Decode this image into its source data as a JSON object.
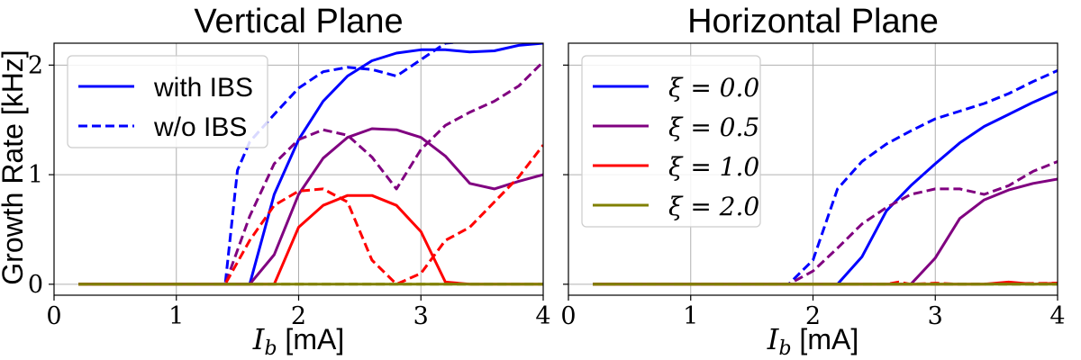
{
  "colors": {
    "xi0": "#0000ff",
    "xi05": "#800080",
    "xi1": "#ff0000",
    "xi2": "#808000"
  },
  "ylabel": "Growth Rate [kHz]",
  "chart_data": [
    {
      "type": "line",
      "title": "Vertical Plane",
      "xlabel_sym": "I",
      "xlabel_sub": "b",
      "xlabel_unit": " [mA]",
      "xlim": [
        0,
        4
      ],
      "ylim": [
        -0.1,
        2.2
      ],
      "xticks": [
        0,
        1,
        2,
        3,
        4
      ],
      "yticks": [
        0,
        1,
        2
      ],
      "grid": true,
      "legend": {
        "placement": "upper-left",
        "entries": [
          {
            "label": "with IBS",
            "style": "solid",
            "color": "#0000ff"
          },
          {
            "label": "w/o IBS",
            "style": "dashed",
            "color": "#0000ff"
          }
        ]
      },
      "series": [
        {
          "color": "#0000ff",
          "style": "solid",
          "points": [
            [
              0.2,
              0
            ],
            [
              1.4,
              0
            ],
            [
              1.6,
              0
            ],
            [
              1.8,
              0.82
            ],
            [
              2.0,
              1.32
            ],
            [
              2.2,
              1.67
            ],
            [
              2.4,
              1.9
            ],
            [
              2.6,
              2.04
            ],
            [
              2.8,
              2.11
            ],
            [
              3.0,
              2.14
            ],
            [
              3.2,
              2.14
            ],
            [
              3.4,
              2.12
            ],
            [
              3.6,
              2.13
            ],
            [
              3.8,
              2.18
            ],
            [
              4.0,
              2.2
            ]
          ]
        },
        {
          "color": "#0000ff",
          "style": "dashed",
          "points": [
            [
              0.2,
              0
            ],
            [
              1.4,
              0
            ],
            [
              1.5,
              1.04
            ],
            [
              1.6,
              1.3
            ],
            [
              1.8,
              1.55
            ],
            [
              2.0,
              1.79
            ],
            [
              2.2,
              1.94
            ],
            [
              2.4,
              1.98
            ],
            [
              2.6,
              1.96
            ],
            [
              2.8,
              1.9
            ],
            [
              3.0,
              2.05
            ],
            [
              3.2,
              2.2
            ],
            [
              3.4,
              2.22
            ],
            [
              3.6,
              2.23
            ],
            [
              4.0,
              2.25
            ]
          ]
        },
        {
          "color": "#800080",
          "style": "solid",
          "points": [
            [
              0.2,
              0
            ],
            [
              1.6,
              0
            ],
            [
              1.8,
              0.27
            ],
            [
              2.0,
              0.82
            ],
            [
              2.2,
              1.15
            ],
            [
              2.4,
              1.34
            ],
            [
              2.6,
              1.42
            ],
            [
              2.8,
              1.41
            ],
            [
              3.0,
              1.34
            ],
            [
              3.2,
              1.17
            ],
            [
              3.4,
              0.92
            ],
            [
              3.6,
              0.87
            ],
            [
              3.8,
              0.94
            ],
            [
              4.0,
              1.0
            ]
          ]
        },
        {
          "color": "#800080",
          "style": "dashed",
          "points": [
            [
              0.2,
              0
            ],
            [
              1.4,
              0
            ],
            [
              1.6,
              0.62
            ],
            [
              1.8,
              1.1
            ],
            [
              2.0,
              1.32
            ],
            [
              2.2,
              1.41
            ],
            [
              2.4,
              1.36
            ],
            [
              2.6,
              1.16
            ],
            [
              2.8,
              0.87
            ],
            [
              3.0,
              1.23
            ],
            [
              3.2,
              1.45
            ],
            [
              3.4,
              1.57
            ],
            [
              3.6,
              1.67
            ],
            [
              3.8,
              1.81
            ],
            [
              4.0,
              2.03
            ]
          ]
        },
        {
          "color": "#ff0000",
          "style": "solid",
          "points": [
            [
              0.2,
              0
            ],
            [
              1.8,
              0
            ],
            [
              2.0,
              0.52
            ],
            [
              2.2,
              0.72
            ],
            [
              2.4,
              0.81
            ],
            [
              2.6,
              0.81
            ],
            [
              2.8,
              0.72
            ],
            [
              3.0,
              0.48
            ],
            [
              3.2,
              0.02
            ],
            [
              3.4,
              0
            ],
            [
              4.0,
              0
            ]
          ]
        },
        {
          "color": "#ff0000",
          "style": "dashed",
          "points": [
            [
              0.2,
              0
            ],
            [
              1.4,
              0
            ],
            [
              1.6,
              0.4
            ],
            [
              1.8,
              0.72
            ],
            [
              2.0,
              0.85
            ],
            [
              2.2,
              0.87
            ],
            [
              2.4,
              0.75
            ],
            [
              2.6,
              0.22
            ],
            [
              2.8,
              0
            ],
            [
              3.0,
              0.1
            ],
            [
              3.2,
              0.4
            ],
            [
              3.4,
              0.52
            ],
            [
              3.6,
              0.75
            ],
            [
              3.8,
              0.98
            ],
            [
              4.0,
              1.27
            ]
          ]
        },
        {
          "color": "#808000",
          "style": "solid",
          "points": [
            [
              0.2,
              0
            ],
            [
              4.0,
              0
            ]
          ]
        },
        {
          "color": "#808000",
          "style": "dashed",
          "points": [
            [
              0.2,
              0
            ],
            [
              4.0,
              0
            ]
          ]
        }
      ]
    },
    {
      "type": "line",
      "title": "Horizontal Plane",
      "xlabel_sym": "I",
      "xlabel_sub": "b",
      "xlabel_unit": " [mA]",
      "xlim": [
        0,
        4
      ],
      "ylim": [
        -0.1,
        2.2
      ],
      "xticks": [
        0,
        1,
        2,
        3,
        4
      ],
      "yticks": [
        0,
        1,
        2
      ],
      "grid": true,
      "legend": {
        "placement": "upper-left",
        "entries": [
          {
            "label": "ξ = 0.0",
            "style": "solid",
            "color": "#0000ff"
          },
          {
            "label": "ξ = 0.5",
            "style": "solid",
            "color": "#800080"
          },
          {
            "label": "ξ = 1.0",
            "style": "solid",
            "color": "#ff0000"
          },
          {
            "label": "ξ = 2.0",
            "style": "solid",
            "color": "#808000"
          }
        ]
      },
      "series": [
        {
          "color": "#0000ff",
          "style": "solid",
          "points": [
            [
              0.2,
              0
            ],
            [
              2.2,
              0
            ],
            [
              2.4,
              0.25
            ],
            [
              2.6,
              0.67
            ],
            [
              2.8,
              0.9
            ],
            [
              3.0,
              1.1
            ],
            [
              3.2,
              1.29
            ],
            [
              3.4,
              1.44
            ],
            [
              3.6,
              1.55
            ],
            [
              3.8,
              1.66
            ],
            [
              4.0,
              1.76
            ]
          ]
        },
        {
          "color": "#0000ff",
          "style": "dashed",
          "points": [
            [
              0.2,
              0
            ],
            [
              1.8,
              0
            ],
            [
              2.0,
              0.22
            ],
            [
              2.2,
              0.87
            ],
            [
              2.4,
              1.12
            ],
            [
              2.6,
              1.28
            ],
            [
              2.8,
              1.4
            ],
            [
              3.0,
              1.51
            ],
            [
              3.2,
              1.58
            ],
            [
              3.4,
              1.65
            ],
            [
              3.6,
              1.74
            ],
            [
              3.8,
              1.85
            ],
            [
              4.0,
              1.95
            ]
          ]
        },
        {
          "color": "#800080",
          "style": "solid",
          "points": [
            [
              0.2,
              0
            ],
            [
              2.8,
              0
            ],
            [
              3.0,
              0.24
            ],
            [
              3.2,
              0.6
            ],
            [
              3.4,
              0.77
            ],
            [
              3.6,
              0.86
            ],
            [
              3.8,
              0.92
            ],
            [
              4.0,
              0.96
            ]
          ]
        },
        {
          "color": "#800080",
          "style": "dashed",
          "points": [
            [
              0.2,
              0
            ],
            [
              1.8,
              0
            ],
            [
              2.0,
              0.12
            ],
            [
              2.2,
              0.33
            ],
            [
              2.4,
              0.55
            ],
            [
              2.6,
              0.7
            ],
            [
              2.8,
              0.82
            ],
            [
              3.0,
              0.87
            ],
            [
              3.2,
              0.87
            ],
            [
              3.4,
              0.82
            ],
            [
              3.6,
              0.9
            ],
            [
              3.8,
              1.03
            ],
            [
              4.0,
              1.12
            ]
          ]
        },
        {
          "color": "#ff0000",
          "style": "solid",
          "points": [
            [
              0.2,
              0
            ],
            [
              3.4,
              0
            ],
            [
              3.6,
              0.02
            ],
            [
              3.8,
              0
            ],
            [
              4.0,
              0.01
            ]
          ]
        },
        {
          "color": "#ff0000",
          "style": "dashed",
          "points": [
            [
              0.2,
              0
            ],
            [
              2.6,
              0
            ],
            [
              2.7,
              0.02
            ],
            [
              2.8,
              0
            ],
            [
              3.0,
              0.01
            ],
            [
              3.2,
              0
            ],
            [
              4.0,
              0.01
            ]
          ]
        },
        {
          "color": "#808000",
          "style": "solid",
          "points": [
            [
              0.2,
              0
            ],
            [
              4.0,
              0
            ]
          ]
        },
        {
          "color": "#808000",
          "style": "dashed",
          "points": [
            [
              0.2,
              0
            ],
            [
              4.0,
              0
            ]
          ]
        }
      ]
    }
  ]
}
